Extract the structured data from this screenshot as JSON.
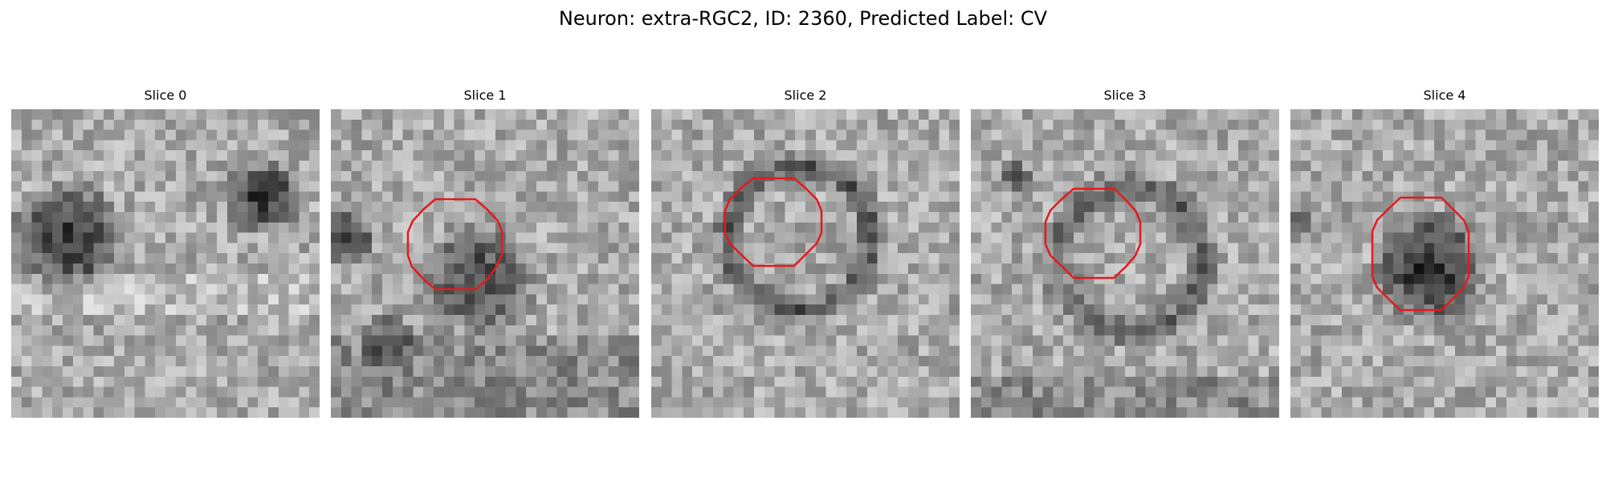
{
  "figure": {
    "title": "Neuron: extra-RGC2, ID: 2360, Predicted Label: CV"
  },
  "contour_color": "#e31a1c",
  "slices": [
    {
      "label": "Slice 0",
      "has_contour": false
    },
    {
      "label": "Slice 1",
      "has_contour": true
    },
    {
      "label": "Slice 2",
      "has_contour": true
    },
    {
      "label": "Slice 3",
      "has_contour": true
    },
    {
      "label": "Slice 4",
      "has_contour": true
    }
  ]
}
